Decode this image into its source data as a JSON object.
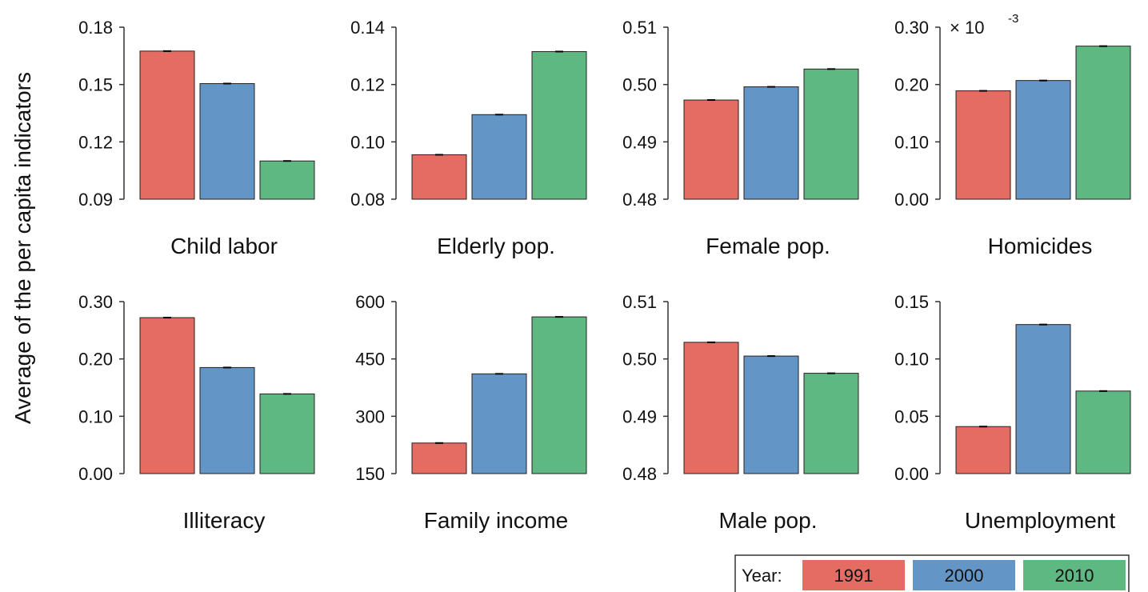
{
  "ylabel": "Average of the per capita indicators",
  "legend": {
    "title": "Year:",
    "items": [
      {
        "label": "1991",
        "color": "#E46C63"
      },
      {
        "label": "2000",
        "color": "#6495C7"
      },
      {
        "label": "2010",
        "color": "#5DB882"
      }
    ]
  },
  "chart_data": [
    {
      "type": "bar",
      "title": "Child labor",
      "categories": [
        "1991",
        "2000",
        "2010"
      ],
      "values": [
        0.1675,
        0.1505,
        0.11
      ],
      "ylim": [
        0.09,
        0.18
      ],
      "yticks": [
        "0.09",
        "0.12",
        "0.15",
        "0.18"
      ],
      "multiplier": ""
    },
    {
      "type": "bar",
      "title": "Elderly pop.",
      "categories": [
        "1991",
        "2000",
        "2010"
      ],
      "values": [
        0.0955,
        0.1095,
        0.1315
      ],
      "ylim": [
        0.08,
        0.14
      ],
      "yticks": [
        "0.08",
        "0.10",
        "0.12",
        "0.14"
      ],
      "multiplier": ""
    },
    {
      "type": "bar",
      "title": "Female pop.",
      "categories": [
        "1991",
        "2000",
        "2010"
      ],
      "values": [
        0.4973,
        0.4996,
        0.5027
      ],
      "ylim": [
        0.48,
        0.51
      ],
      "yticks": [
        "0.48",
        "0.49",
        "0.50",
        "0.51"
      ],
      "multiplier": ""
    },
    {
      "type": "bar",
      "title": "Homicides",
      "categories": [
        "1991",
        "2000",
        "2010"
      ],
      "values": [
        0.189,
        0.207,
        0.267
      ],
      "ylim": [
        0.0,
        0.3
      ],
      "yticks": [
        "0.00",
        "0.10",
        "0.20",
        "0.30"
      ],
      "multiplier": "× 10",
      "multiplier_exp": "-3"
    },
    {
      "type": "bar",
      "title": "Illiteracy",
      "categories": [
        "1991",
        "2000",
        "2010"
      ],
      "values": [
        0.272,
        0.185,
        0.139
      ],
      "ylim": [
        0.0,
        0.3
      ],
      "yticks": [
        "0.00",
        "0.10",
        "0.20",
        "0.30"
      ],
      "multiplier": ""
    },
    {
      "type": "bar",
      "title": "Family income",
      "categories": [
        "1991",
        "2000",
        "2010"
      ],
      "values": [
        230,
        411,
        560
      ],
      "ylim": [
        150,
        600
      ],
      "yticks": [
        "150",
        "300",
        "450",
        "600"
      ],
      "multiplier": ""
    },
    {
      "type": "bar",
      "title": "Male pop.",
      "categories": [
        "1991",
        "2000",
        "2010"
      ],
      "values": [
        0.5029,
        0.5005,
        0.4975
      ],
      "ylim": [
        0.48,
        0.51
      ],
      "yticks": [
        "0.48",
        "0.49",
        "0.50",
        "0.51"
      ],
      "multiplier": ""
    },
    {
      "type": "bar",
      "title": "Unemployment",
      "categories": [
        "1991",
        "2000",
        "2010"
      ],
      "values": [
        0.041,
        0.13,
        0.072
      ],
      "ylim": [
        0.0,
        0.15
      ],
      "yticks": [
        "0.00",
        "0.05",
        "0.10",
        "0.15"
      ],
      "multiplier": ""
    }
  ]
}
